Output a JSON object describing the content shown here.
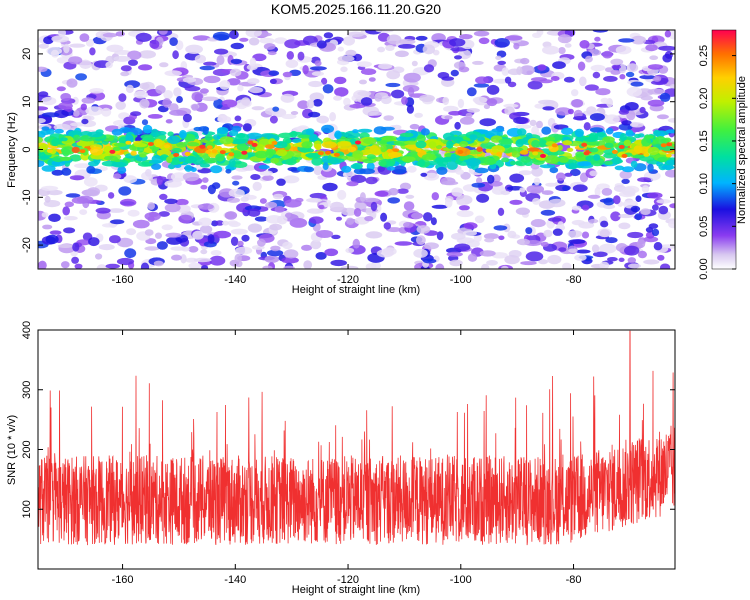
{
  "title": "KOM5.2025.166.11.20.G20",
  "chart_data": [
    {
      "type": "heatmap",
      "xlabel": "Height of straight line (km)",
      "ylabel": "Frequency (Hz)",
      "xlim": [
        -175,
        -62
      ],
      "ylim": [
        -25,
        25
      ],
      "xticks": [
        "-160",
        "-140",
        "-120",
        "-100",
        "-80"
      ],
      "yticks": [
        "-20",
        "-10",
        "0",
        "10",
        "20"
      ],
      "colorbar": {
        "label": "Normalized spectral amplitude",
        "range": [
          0,
          0.28
        ],
        "ticks": [
          "0.00",
          "0.05",
          "0.10",
          "0.15",
          "0.20",
          "0.25"
        ]
      },
      "description_band_center_hz": 0,
      "band_halfwidth_hz": 5
    },
    {
      "type": "line",
      "xlabel": "Height of straight line (km)",
      "ylabel": "SNR (10 * v/v)",
      "xlim": [
        -175,
        -62
      ],
      "ylim": [
        0,
        400
      ],
      "xticks": [
        "-160",
        "-140",
        "-120",
        "-100",
        "-80"
      ],
      "yticks": [
        "100",
        "200",
        "300",
        "400"
      ],
      "color": "#f03030",
      "mean_level": 115,
      "peak": {
        "x": -70,
        "y": 398
      }
    }
  ]
}
